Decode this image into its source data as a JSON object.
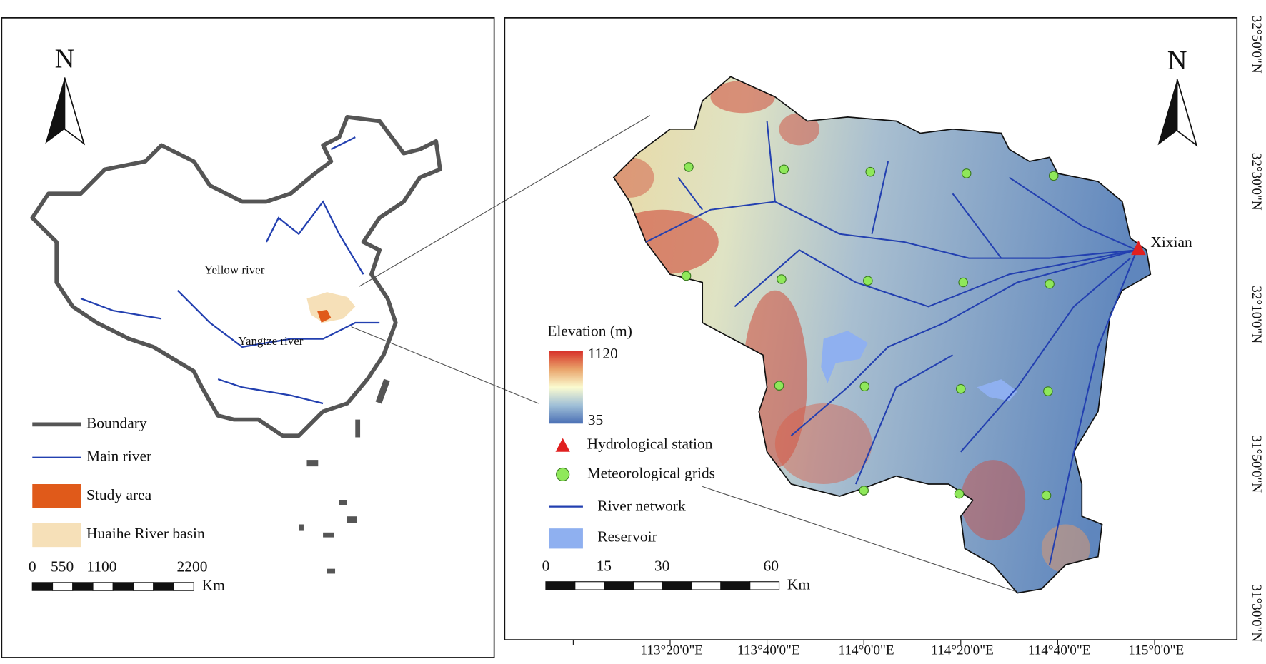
{
  "left_map": {
    "north": "N",
    "river_labels": [
      "Yellow river",
      "Yangtze river"
    ],
    "legend": [
      "Boundary",
      "Main river",
      "Study area",
      "Huaihe River basin"
    ],
    "scale": {
      "ticks": [
        0,
        550,
        1100,
        2200
      ],
      "unit": "Km"
    }
  },
  "right_map": {
    "north": "N",
    "station": "Xixian",
    "elevation_legend": {
      "title": "Elevation (m)",
      "max": 1120,
      "min": 35
    },
    "legend": [
      "Hydrological station",
      "Meteorological grids",
      "River network",
      "Reservoir"
    ],
    "scale": {
      "ticks": [
        0,
        15,
        30,
        60
      ],
      "unit": "Km"
    },
    "longitude_labels": [
      "113°20'0\"E",
      "113°40'0\"E",
      "114°0'0\"E",
      "114°20'0\"E",
      "114°40'0\"E",
      "115°0'0\"E"
    ],
    "latitude_labels": [
      "32°50'0\"N",
      "32°30'0\"N",
      "32°10'0\"N",
      "31°50'0\"N",
      "31°30'0\"N"
    ]
  }
}
